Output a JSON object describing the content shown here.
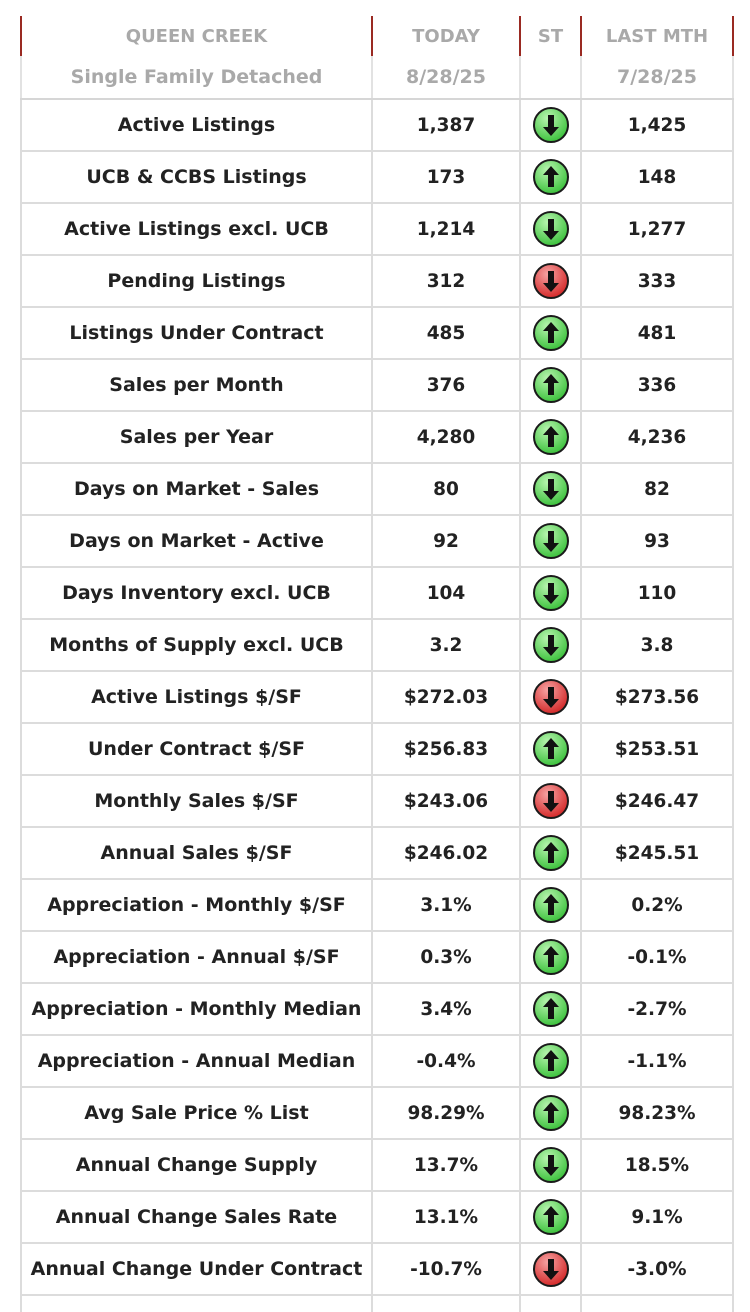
{
  "header": {
    "area": "QUEEN CREEK",
    "today": "TODAY",
    "status": "ST",
    "last_month": "LAST MTH",
    "property_type": "Single Family Detached",
    "today_date": "8/28/25",
    "last_month_date": "7/28/25"
  },
  "colors": {
    "up": "#3ec23e",
    "down_green": "#3ec23e",
    "down_red": "#d42a2a",
    "header_rule": "#9a2a22"
  },
  "rows": [
    {
      "metric": "Active Listings",
      "today": "1,387",
      "arrow": "down",
      "color": "green",
      "last": "1,425"
    },
    {
      "metric": "UCB & CCBS Listings",
      "today": "173",
      "arrow": "up",
      "color": "green",
      "last": "148"
    },
    {
      "metric": "Active Listings excl. UCB",
      "today": "1,214",
      "arrow": "down",
      "color": "green",
      "last": "1,277"
    },
    {
      "metric": "Pending Listings",
      "today": "312",
      "arrow": "down",
      "color": "red",
      "last": "333"
    },
    {
      "metric": "Listings Under Contract",
      "today": "485",
      "arrow": "up",
      "color": "green",
      "last": "481"
    },
    {
      "metric": "Sales per Month",
      "today": "376",
      "arrow": "up",
      "color": "green",
      "last": "336"
    },
    {
      "metric": "Sales per Year",
      "today": "4,280",
      "arrow": "up",
      "color": "green",
      "last": "4,236"
    },
    {
      "metric": "Days on Market - Sales",
      "today": "80",
      "arrow": "down",
      "color": "green",
      "last": "82"
    },
    {
      "metric": "Days on Market - Active",
      "today": "92",
      "arrow": "down",
      "color": "green",
      "last": "93"
    },
    {
      "metric": "Days Inventory excl. UCB",
      "today": "104",
      "arrow": "down",
      "color": "green",
      "last": "110"
    },
    {
      "metric": "Months of Supply excl. UCB",
      "today": "3.2",
      "arrow": "down",
      "color": "green",
      "last": "3.8"
    },
    {
      "metric": "Active Listings $/SF",
      "today": "$272.03",
      "arrow": "down",
      "color": "red",
      "last": "$273.56"
    },
    {
      "metric": "Under Contract $/SF",
      "today": "$256.83",
      "arrow": "up",
      "color": "green",
      "last": "$253.51"
    },
    {
      "metric": "Monthly Sales $/SF",
      "today": "$243.06",
      "arrow": "down",
      "color": "red",
      "last": "$246.47"
    },
    {
      "metric": "Annual Sales $/SF",
      "today": "$246.02",
      "arrow": "up",
      "color": "green",
      "last": "$245.51"
    },
    {
      "metric": "Appreciation - Monthly $/SF",
      "today": "3.1%",
      "arrow": "up",
      "color": "green",
      "last": "0.2%"
    },
    {
      "metric": "Appreciation - Annual $/SF",
      "today": "0.3%",
      "arrow": "up",
      "color": "green",
      "last": "-0.1%"
    },
    {
      "metric": "Appreciation - Monthly Median",
      "today": "3.4%",
      "arrow": "up",
      "color": "green",
      "last": "-2.7%"
    },
    {
      "metric": "Appreciation - Annual Median",
      "today": "-0.4%",
      "arrow": "up",
      "color": "green",
      "last": "-1.1%"
    },
    {
      "metric": "Avg Sale Price % List",
      "today": "98.29%",
      "arrow": "up",
      "color": "green",
      "last": "98.23%"
    },
    {
      "metric": "Annual Change Supply",
      "today": "13.7%",
      "arrow": "down",
      "color": "green",
      "last": "18.5%"
    },
    {
      "metric": "Annual Change Sales Rate",
      "today": "13.1%",
      "arrow": "up",
      "color": "green",
      "last": "9.1%"
    },
    {
      "metric": "Annual Change Under Contract",
      "today": "-10.7%",
      "arrow": "down",
      "color": "red",
      "last": "-3.0%"
    }
  ]
}
